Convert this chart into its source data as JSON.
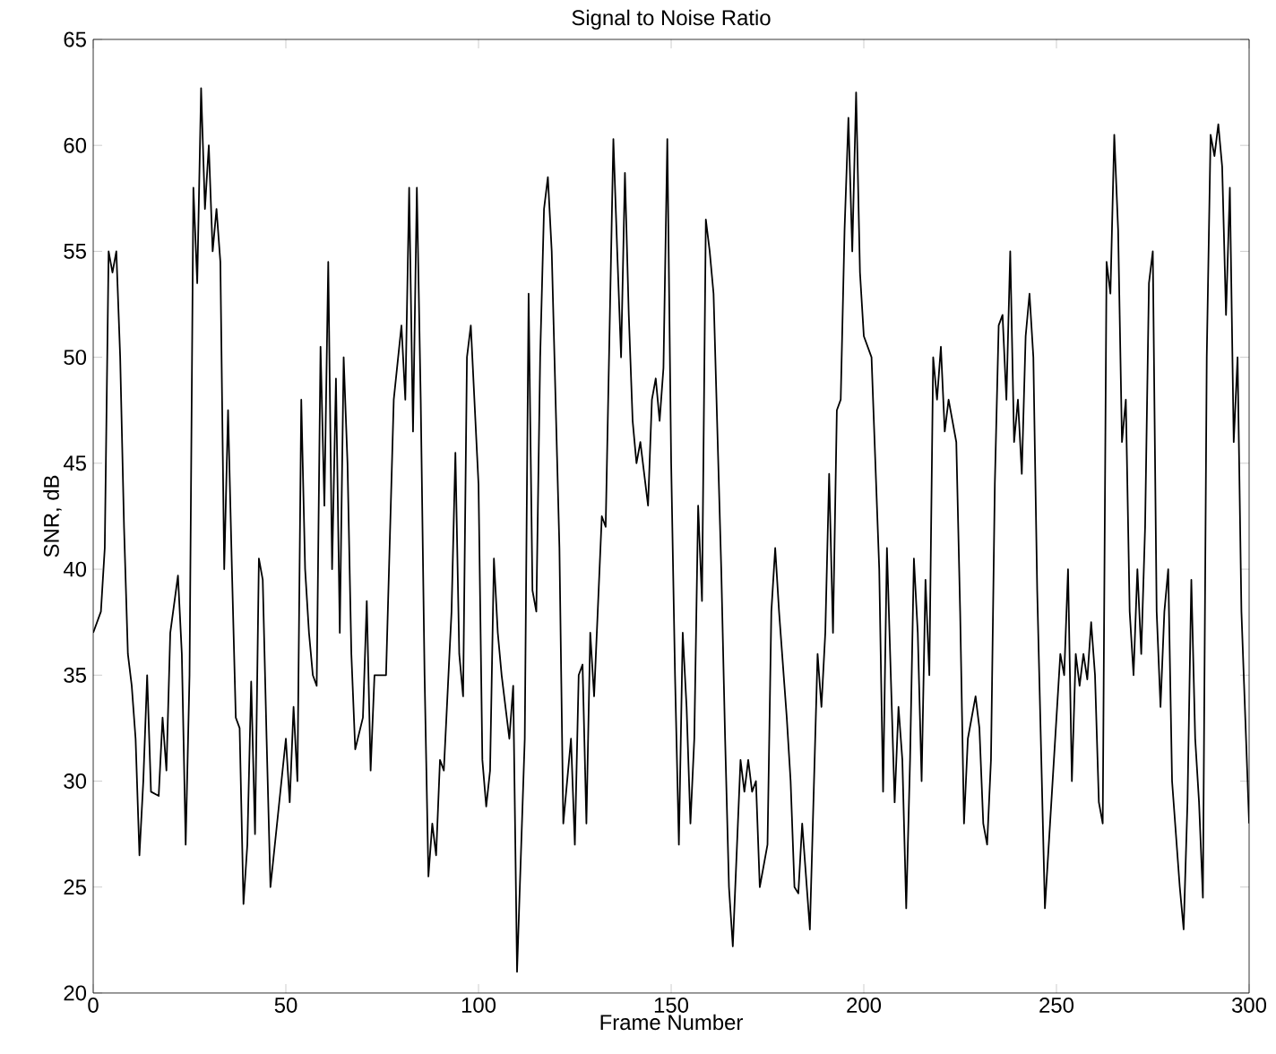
{
  "chart_data": {
    "type": "line",
    "title": "Signal to Noise Ratio",
    "xlabel": "Frame Number",
    "ylabel": "SNR, dB",
    "x": [
      0,
      2,
      3,
      4,
      5,
      6,
      7,
      8,
      9,
      10,
      11,
      12,
      13,
      14,
      15,
      17,
      18,
      19,
      20,
      22,
      23,
      24,
      25,
      26,
      27,
      28,
      29,
      30,
      31,
      32,
      33,
      34,
      35,
      36,
      37,
      38,
      39,
      40,
      41,
      42,
      43,
      44,
      45,
      46,
      48,
      50,
      51,
      52,
      53,
      54,
      55,
      56,
      57,
      58,
      59,
      60,
      61,
      62,
      63,
      64,
      65,
      66,
      67,
      68,
      70,
      71,
      72,
      73,
      76,
      78,
      80,
      81,
      82,
      83,
      84,
      85,
      86,
      87,
      88,
      89,
      90,
      91,
      93,
      94,
      95,
      96,
      97,
      98,
      100,
      101,
      102,
      103,
      104,
      105,
      106,
      108,
      109,
      110,
      112,
      113,
      114,
      115,
      116,
      117,
      118,
      119,
      121,
      122,
      124,
      125,
      126,
      127,
      128,
      129,
      130,
      132,
      133,
      135,
      136,
      137,
      138,
      139,
      140,
      141,
      142,
      144,
      145,
      146,
      147,
      148,
      149,
      150,
      151,
      152,
      153,
      154,
      155,
      156,
      157,
      158,
      159,
      160,
      161,
      163,
      164,
      165,
      166,
      168,
      169,
      170,
      171,
      172,
      173,
      175,
      176,
      177,
      178,
      180,
      181,
      182,
      183,
      184,
      186,
      188,
      189,
      190,
      191,
      192,
      193,
      194,
      195,
      196,
      197,
      198,
      199,
      200,
      202,
      204,
      205,
      206,
      208,
      209,
      210,
      211,
      212,
      213,
      214,
      215,
      216,
      217,
      218,
      219,
      220,
      221,
      222,
      224,
      225,
      226,
      227,
      229,
      230,
      231,
      232,
      233,
      234,
      235,
      236,
      237,
      238,
      239,
      240,
      241,
      242,
      243,
      244,
      245,
      247,
      250,
      251,
      252,
      253,
      254,
      255,
      256,
      257,
      258,
      259,
      260,
      261,
      262,
      263,
      264,
      265,
      266,
      267,
      268,
      269,
      270,
      271,
      272,
      273,
      274,
      275,
      276,
      277,
      278,
      279,
      280,
      282,
      283,
      284,
      285,
      286,
      287,
      288,
      289,
      290,
      291,
      292,
      293,
      294,
      295,
      296,
      297,
      298,
      299,
      300
    ],
    "series": [
      {
        "color": "#000000",
        "values": [
          37,
          38,
          41,
          55,
          54,
          55,
          50,
          42,
          36,
          34.5,
          32,
          26.5,
          30,
          35,
          29.5,
          29.3,
          33,
          30.5,
          37,
          39.7,
          36,
          27,
          35,
          58,
          53.5,
          62.7,
          57,
          60,
          55,
          57,
          54.5,
          40,
          47.5,
          40,
          33,
          32.5,
          24.2,
          27,
          34.7,
          27.5,
          40.5,
          39.5,
          32,
          25,
          28.5,
          32,
          29,
          33.5,
          30,
          48,
          40,
          37,
          35,
          34.5,
          50.5,
          43,
          54.5,
          40,
          49,
          37,
          50,
          45,
          36,
          31.5,
          33,
          38.5,
          30.5,
          35,
          35,
          48,
          51.5,
          48,
          58,
          46.5,
          58,
          48,
          35,
          25.5,
          28,
          26.5,
          31,
          30.5,
          38,
          45.5,
          36,
          34,
          50,
          51.5,
          44,
          31,
          28.8,
          30.5,
          40.5,
          37,
          35,
          32,
          34.5,
          21,
          32,
          53,
          39,
          38,
          50,
          57,
          58.5,
          55,
          41,
          28,
          32,
          27,
          35,
          35.5,
          28,
          37,
          34,
          42.5,
          42,
          60.3,
          55,
          50,
          58.7,
          52,
          47,
          45,
          46,
          43,
          48,
          49,
          47,
          49.5,
          60.3,
          45,
          35,
          27,
          37,
          33.5,
          28,
          32,
          43,
          38.5,
          56.5,
          55,
          53,
          40,
          32,
          25,
          22.2,
          31,
          29.5,
          31,
          29.5,
          30,
          25,
          27,
          38,
          41,
          38,
          33,
          30,
          25,
          24.7,
          28,
          23,
          36,
          33.5,
          37,
          44.5,
          37,
          47.5,
          48,
          56,
          61.3,
          55,
          62.5,
          54,
          51,
          50,
          40,
          29.5,
          41,
          29,
          33.5,
          31,
          24,
          31,
          40.5,
          37,
          30,
          39.5,
          35,
          50,
          48,
          50.5,
          46.5,
          48,
          46,
          38,
          28,
          32,
          34,
          32.5,
          28,
          27,
          31,
          44,
          51.5,
          52,
          48,
          55,
          46,
          48,
          44.5,
          51,
          53,
          50,
          39,
          24,
          33,
          36,
          35,
          40,
          30,
          36,
          34.5,
          36,
          34.8,
          37.5,
          35,
          29,
          28,
          54.5,
          53,
          60.5,
          56,
          46,
          48,
          38,
          35,
          40,
          36,
          42,
          53.5,
          55,
          38,
          33.5,
          38,
          40,
          30,
          25,
          23,
          29,
          39.5,
          32,
          29,
          24.5,
          50,
          60.5,
          59.5,
          61,
          59,
          52,
          58,
          46,
          50,
          38,
          33,
          28
        ]
      }
    ],
    "xlim": [
      0,
      300
    ],
    "ylim": [
      20,
      65
    ],
    "xticks": [
      0,
      50,
      100,
      150,
      200,
      250,
      300
    ],
    "yticks": [
      20,
      25,
      30,
      35,
      40,
      45,
      50,
      55,
      60,
      65
    ],
    "marker": "none",
    "line_style": "solid"
  }
}
